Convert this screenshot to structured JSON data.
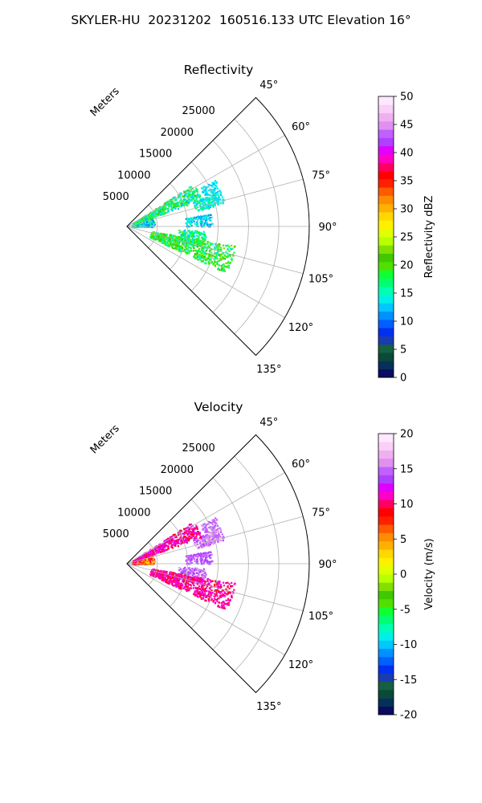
{
  "suptitle": "SKYLER-HU  20231202  160516.133 UTC Elevation 16°",
  "chart_data": [
    {
      "type": "heatmap",
      "projection": "polar-sector",
      "title": "Reflectivity",
      "radial_label": "Meters",
      "radial_ticks": [
        5000,
        10000,
        15000,
        20000,
        25000
      ],
      "radial_max": 30000,
      "angle_range_deg": [
        45,
        135
      ],
      "angle_ticks": [
        45,
        60,
        75,
        90,
        105,
        120,
        135
      ],
      "angle_tick_labels": [
        "45°",
        "60°",
        "75°",
        "90°",
        "105°",
        "120°",
        "135°"
      ],
      "grid": true,
      "colorbar": {
        "label": "Reflectivity dBZ",
        "min": 0,
        "max": 50,
        "ticks": [
          0,
          5,
          10,
          15,
          20,
          25,
          30,
          35,
          40,
          45,
          50
        ],
        "colors": [
          "#0b0b60",
          "#06305a",
          "#0a4a38",
          "#156040",
          "#1a3cb0",
          "#0030f0",
          "#0060ff",
          "#0090ff",
          "#00c8ff",
          "#00f0e8",
          "#00ffb0",
          "#00ff70",
          "#10ff30",
          "#50e000",
          "#40c800",
          "#80e000",
          "#b8ff00",
          "#e0ff00",
          "#fff000",
          "#ffd800",
          "#ffb000",
          "#ff8c00",
          "#ff5a00",
          "#ff2000",
          "#ff0000",
          "#ff0060",
          "#ff00c8",
          "#e000ff",
          "#b040ff",
          "#c060ff",
          "#e090f0",
          "#f0b0f0",
          "#f8d0f8",
          "#ffe8ff"
        ]
      },
      "echo_clusters": [
        {
          "az_deg": [
            57,
            70
          ],
          "range_m": [
            1000,
            13000
          ],
          "value_dbz": [
            12,
            22
          ]
        },
        {
          "az_deg": [
            69,
            77
          ],
          "range_m": [
            11500,
            15500
          ],
          "value_dbz": [
            12,
            18
          ]
        },
        {
          "az_deg": [
            62,
            76
          ],
          "range_m": [
            13500,
            16500
          ],
          "value_dbz": [
            12,
            15
          ]
        },
        {
          "az_deg": [
            72,
            90
          ],
          "range_m": [
            800,
            4500
          ],
          "value_dbz": [
            10,
            18
          ]
        },
        {
          "az_deg": [
            81,
            90
          ],
          "range_m": [
            9500,
            14000
          ],
          "value_dbz": [
            10,
            16
          ]
        },
        {
          "az_deg": [
            93,
            106
          ],
          "range_m": [
            8500,
            13000
          ],
          "value_dbz": [
            12,
            20
          ]
        },
        {
          "az_deg": [
            100,
            115
          ],
          "range_m": [
            4000,
            18000
          ],
          "value_dbz": [
            14,
            23
          ]
        }
      ]
    },
    {
      "type": "heatmap",
      "projection": "polar-sector",
      "title": "Velocity",
      "radial_label": "Meters",
      "radial_ticks": [
        5000,
        10000,
        15000,
        20000,
        25000
      ],
      "radial_max": 30000,
      "angle_range_deg": [
        45,
        135
      ],
      "angle_ticks": [
        45,
        60,
        75,
        90,
        105,
        120,
        135
      ],
      "angle_tick_labels": [
        "45°",
        "60°",
        "75°",
        "90°",
        "105°",
        "120°",
        "135°"
      ],
      "grid": true,
      "colorbar": {
        "label": "Velocity (m/s)",
        "min": -20,
        "max": 20,
        "ticks": [
          -20,
          -15,
          -10,
          -5,
          0,
          5,
          10,
          15,
          20
        ],
        "colors": [
          "#0b0b60",
          "#06305a",
          "#0a4a38",
          "#156040",
          "#1a3cb0",
          "#0030f0",
          "#0060ff",
          "#0090ff",
          "#00c8ff",
          "#00f0e8",
          "#00ffb0",
          "#00ff70",
          "#10ff30",
          "#50e000",
          "#40c800",
          "#80e000",
          "#b8ff00",
          "#e0ff00",
          "#fff000",
          "#ffd800",
          "#ffb000",
          "#ff8c00",
          "#ff5a00",
          "#ff2000",
          "#ff0000",
          "#ff0060",
          "#ff00c8",
          "#e000ff",
          "#b040ff",
          "#c060ff",
          "#e090f0",
          "#f0b0f0",
          "#f8d0f8",
          "#ffe8ff"
        ]
      },
      "echo_clusters": [
        {
          "az_deg": [
            57,
            70
          ],
          "range_m": [
            1000,
            13000
          ],
          "value_ms": [
            9,
            13
          ]
        },
        {
          "az_deg": [
            69,
            77
          ],
          "range_m": [
            11500,
            15500
          ],
          "value_ms": [
            13,
            17
          ]
        },
        {
          "az_deg": [
            62,
            76
          ],
          "range_m": [
            13500,
            16500
          ],
          "value_ms": [
            14,
            16
          ]
        },
        {
          "az_deg": [
            72,
            90
          ],
          "range_m": [
            800,
            4500
          ],
          "value_ms": [
            3,
            11
          ]
        },
        {
          "az_deg": [
            81,
            90
          ],
          "range_m": [
            9500,
            14000
          ],
          "value_ms": [
            13,
            15
          ]
        },
        {
          "az_deg": [
            93,
            106
          ],
          "range_m": [
            8500,
            13000
          ],
          "value_ms": [
            13,
            16
          ]
        },
        {
          "az_deg": [
            100,
            115
          ],
          "range_m": [
            4000,
            18000
          ],
          "value_ms": [
            9,
            12
          ]
        }
      ]
    }
  ]
}
